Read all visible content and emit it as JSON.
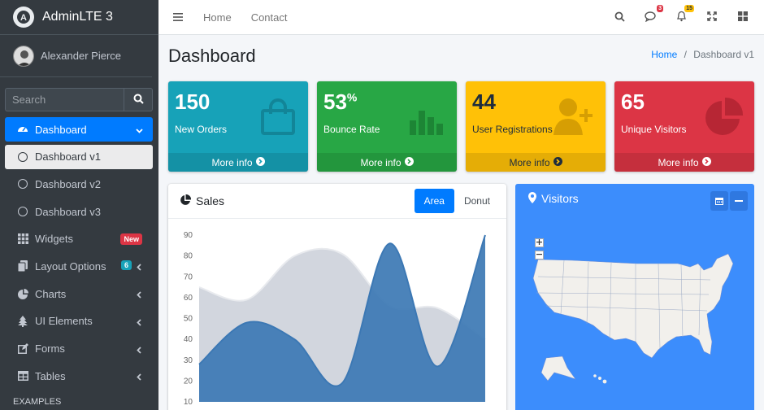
{
  "brand": {
    "name": "AdminLTE 3"
  },
  "user": {
    "name": "Alexander Pierce"
  },
  "search": {
    "placeholder": "Search"
  },
  "sidebar": {
    "items": [
      {
        "label": "Dashboard",
        "icon": "tachometer-icon"
      },
      {
        "label": "Dashboard v1",
        "icon": "circle-icon"
      },
      {
        "label": "Dashboard v2",
        "icon": "circle-icon"
      },
      {
        "label": "Dashboard v3",
        "icon": "circle-icon"
      },
      {
        "label": "Widgets",
        "icon": "grid-icon",
        "badge": "New"
      },
      {
        "label": "Layout Options",
        "icon": "copy-icon",
        "badge": "6"
      },
      {
        "label": "Charts",
        "icon": "pie-chart-icon"
      },
      {
        "label": "UI Elements",
        "icon": "tree-icon"
      },
      {
        "label": "Forms",
        "icon": "edit-icon"
      },
      {
        "label": "Tables",
        "icon": "table-icon"
      }
    ],
    "section_header": "EXAMPLES"
  },
  "topnav": {
    "links": [
      "Home",
      "Contact"
    ],
    "messages_count": "3",
    "notifications_count": "15"
  },
  "page": {
    "title": "Dashboard",
    "breadcrumb_home": "Home",
    "breadcrumb_sep": "/",
    "breadcrumb_current": "Dashboard v1"
  },
  "stats": [
    {
      "value": "150",
      "label": "New Orders",
      "footer": "More info",
      "color": "#17a2b8"
    },
    {
      "value": "53",
      "suffix": "%",
      "label": "Bounce Rate",
      "footer": "More info",
      "color": "#28a745"
    },
    {
      "value": "44",
      "label": "User Registrations",
      "footer": "More info",
      "color": "#ffc107"
    },
    {
      "value": "65",
      "label": "Unique Visitors",
      "footer": "More info",
      "color": "#dc3545"
    }
  ],
  "sales": {
    "title": "Sales",
    "tabs": [
      "Area",
      "Donut"
    ],
    "active_tab": "Area"
  },
  "visitors": {
    "title": "Visitors"
  },
  "chart_data": {
    "type": "area",
    "title": "Sales",
    "y_ticks": [
      10,
      20,
      30,
      40,
      50,
      60,
      70,
      80,
      90
    ],
    "ylim": [
      10,
      90
    ],
    "series": [
      {
        "values": [
          65,
          59,
          80,
          81,
          56,
          55,
          40
        ],
        "color": "#d2d6de"
      },
      {
        "values": [
          28,
          48,
          40,
          19,
          86,
          27,
          90
        ],
        "color": "#3c78b4"
      }
    ]
  }
}
